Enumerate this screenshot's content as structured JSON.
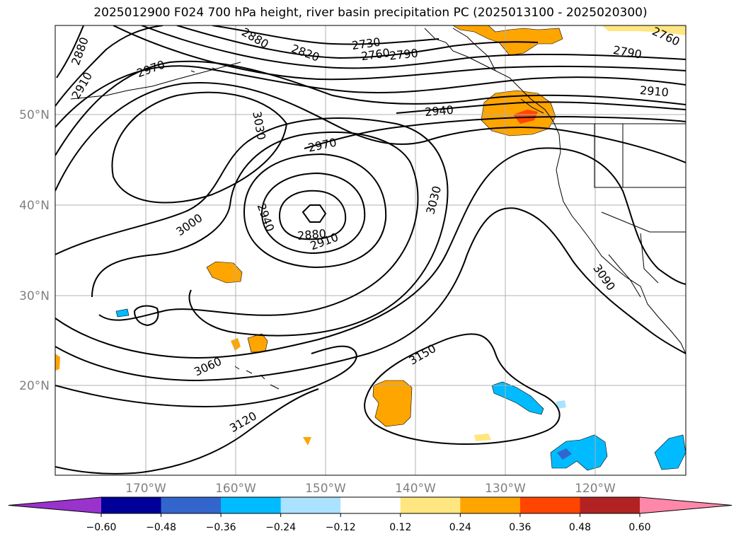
{
  "title": "2025012900 F024 700 hPa height, river basin precipitation PC (2025013100 - 2025020300)",
  "lat_labels": [
    "50°N",
    "40°N",
    "30°N",
    "20°N"
  ],
  "lon_labels": [
    "170°W",
    "160°W",
    "150°W",
    "140°W",
    "130°W",
    "120°W"
  ],
  "contour_labels": [
    "2880",
    "2910",
    "2970",
    "3030",
    "2730",
    "2760",
    "2790",
    "2760",
    "2790",
    "2910",
    "2940",
    "2970",
    "3000",
    "2940",
    "2880",
    "2910",
    "3030",
    "3090",
    "3060",
    "3150",
    "3120",
    "2880",
    "2820"
  ],
  "colorbar": {
    "ticks": [
      "−0.60",
      "−0.48",
      "−0.36",
      "−0.24",
      "−0.12",
      "0.12",
      "0.24",
      "0.36",
      "0.48",
      "0.60"
    ],
    "colors": [
      "#9933cc",
      "#000099",
      "#3366cc",
      "#00bbff",
      "#aae2ff",
      "#ffffff",
      "#ffe680",
      "#ffa500",
      "#ff4500",
      "#b22222",
      "#ff88aa"
    ]
  }
}
